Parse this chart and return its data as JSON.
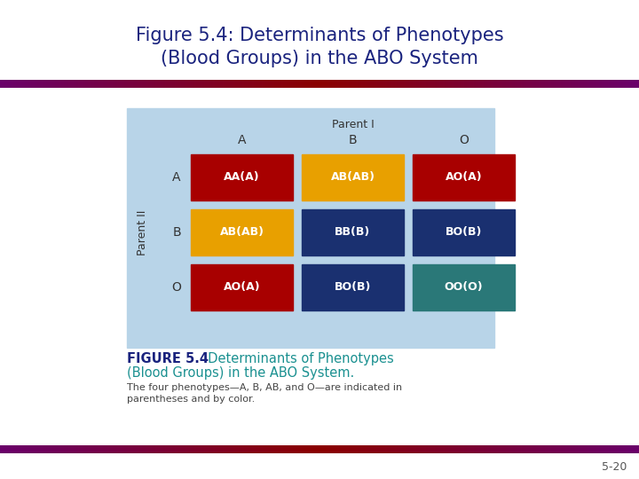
{
  "title": "Figure 5.4: Determinants of Phenotypes\n(Blood Groups) in the ABO System",
  "title_color": "#1a237e",
  "title_fontsize": 15,
  "bg_color": "#ffffff",
  "table_bg": "#b8d4e8",
  "parent1_label": "Parent I",
  "parent2_label": "Parent II",
  "col_headers": [
    "A",
    "B",
    "O"
  ],
  "row_headers": [
    "A",
    "B",
    "O"
  ],
  "cell_labels": [
    [
      "AA(A)",
      "AB(AB)",
      "AO(A)"
    ],
    [
      "AB(AB)",
      "BB(B)",
      "BO(B)"
    ],
    [
      "AO(A)",
      "BO(B)",
      "OO(O)"
    ]
  ],
  "cell_colors": [
    [
      "#a80000",
      "#e8a000",
      "#a80000"
    ],
    [
      "#e8a000",
      "#1a3070",
      "#1a3070"
    ],
    [
      "#a80000",
      "#1a3070",
      "#2a7878"
    ]
  ],
  "cell_text_color": "#ffffff",
  "figure_label_bold": "FIGURE 5.4",
  "figure_label_color": "#1a237e",
  "figure_label_colored_line1": "  Determinants of Phenotypes",
  "figure_label_colored_line2": "(Blood Groups) in the ABO System.",
  "figure_label_colored_color": "#1a9090",
  "caption": "The four phenotypes—A, B, AB, and O—are indicated in\nparentheses and by color.",
  "caption_color": "#444444",
  "caption_fontsize": 8,
  "page_num": "5-20",
  "page_num_color": "#555555",
  "bar_purple": "#6a006a",
  "bar_red": "#8b0000"
}
